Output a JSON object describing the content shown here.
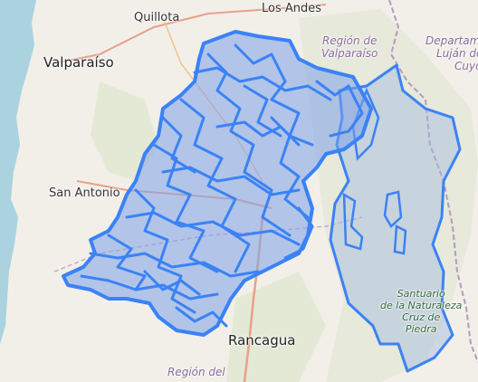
{
  "map": {
    "colors": {
      "land": "#f2efe9",
      "sea": "#aad3df",
      "relief": "#d9e4c8",
      "overlay_fill": "#9fb8e0",
      "overlay_stroke": "#3b82f6",
      "road": "#e9a08a",
      "boundary": "#b59ac3"
    },
    "labels": {
      "los_andes": "Los Andes",
      "quillota": "Quillota",
      "valparaiso": "Valparaíso",
      "san_antonio": "San Antonio",
      "rancagua": "Rancagua",
      "region_valparaiso_1": "Región de",
      "region_valparaiso_2": "Valparaíso",
      "dept_1": "Departam",
      "dept_2": "Luján de",
      "dept_3": "Cuyo",
      "region_del": "Región del",
      "santuario_1": "Santuario",
      "santuario_2": "de la Naturaleza",
      "santuario_3": "Cruz de",
      "santuario_4": "Piedra"
    }
  }
}
